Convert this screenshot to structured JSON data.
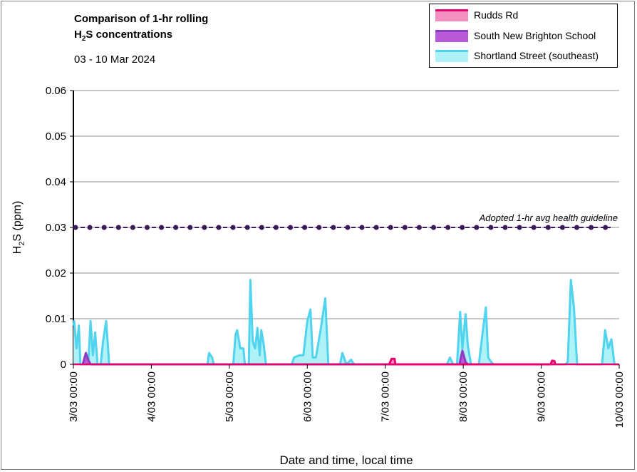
{
  "chart_data": {
    "type": "area",
    "title_line1": "Comparison of 1-hr rolling",
    "title_line2_pre": "H",
    "title_line2_sub": "2",
    "title_line2_post": "S concentrations",
    "subtitle": "03 - 10 Mar 2024",
    "xlabel": "Date and time, local time",
    "ylabel_pre": "H",
    "ylabel_sub": "2",
    "ylabel_post": "S (ppm)",
    "ylim": [
      0,
      0.06
    ],
    "yticks": [
      0,
      0.01,
      0.02,
      0.03,
      0.04,
      0.05,
      0.06
    ],
    "ytick_labels": [
      "0",
      "0.01",
      "0.02",
      "0.03",
      "0.04",
      "0.05",
      "0.06"
    ],
    "xlim_days": [
      0,
      7
    ],
    "xticks": [
      "3/03 00:00",
      "4/03 00:00",
      "5/03 00:00",
      "6/03 00:00",
      "7/03 00:00",
      "8/03 00:00",
      "9/03 00:00",
      "10/03 00:00"
    ],
    "grid": true,
    "legend_position": "top-right",
    "guideline": {
      "value": 0.03,
      "label": "Adopted 1-hr avg health guideline",
      "color": "#3b1a5a"
    },
    "series": [
      {
        "name": "Shortland Street (southeast)",
        "line_color": "#4fd3ee",
        "fill_color": "#aef2f8",
        "points": [
          [
            0.0,
            0.0085
          ],
          [
            0.01,
            0.0095
          ],
          [
            0.04,
            0.0035
          ],
          [
            0.07,
            0.0085
          ],
          [
            0.09,
            0.0
          ],
          [
            0.16,
            0.0
          ],
          [
            0.19,
            0.0
          ],
          [
            0.22,
            0.0095
          ],
          [
            0.25,
            0.002
          ],
          [
            0.28,
            0.007
          ],
          [
            0.31,
            0.0
          ],
          [
            0.35,
            0.0
          ],
          [
            0.38,
            0.005
          ],
          [
            0.42,
            0.0095
          ],
          [
            0.46,
            0.0
          ],
          [
            1.68,
            0.0
          ],
          [
            1.72,
            0.0
          ],
          [
            1.74,
            0.0025
          ],
          [
            1.78,
            0.0015
          ],
          [
            1.8,
            0.0
          ],
          [
            2.05,
            0.0
          ],
          [
            2.08,
            0.0065
          ],
          [
            2.1,
            0.0075
          ],
          [
            2.14,
            0.0035
          ],
          [
            2.18,
            0.0035
          ],
          [
            2.2,
            0.0
          ],
          [
            2.25,
            0.0
          ],
          [
            2.27,
            0.0185
          ],
          [
            2.3,
            0.005
          ],
          [
            2.33,
            0.0035
          ],
          [
            2.36,
            0.008
          ],
          [
            2.39,
            0.002
          ],
          [
            2.41,
            0.0075
          ],
          [
            2.44,
            0.0045
          ],
          [
            2.47,
            0.0
          ],
          [
            2.8,
            0.0
          ],
          [
            2.83,
            0.0015
          ],
          [
            2.9,
            0.002
          ],
          [
            2.95,
            0.002
          ],
          [
            3.0,
            0.0095
          ],
          [
            3.04,
            0.012
          ],
          [
            3.07,
            0.0015
          ],
          [
            3.11,
            0.0015
          ],
          [
            3.17,
            0.0075
          ],
          [
            3.23,
            0.0145
          ],
          [
            3.27,
            0.0
          ],
          [
            3.42,
            0.0
          ],
          [
            3.45,
            0.0025
          ],
          [
            3.5,
            0.0
          ],
          [
            3.56,
            0.001
          ],
          [
            3.6,
            0.0
          ],
          [
            4.05,
            0.0
          ],
          [
            4.1,
            0.001
          ],
          [
            4.13,
            0.0
          ],
          [
            4.79,
            0.0
          ],
          [
            4.83,
            0.0015
          ],
          [
            4.87,
            0.0
          ],
          [
            4.92,
            0.0
          ],
          [
            4.96,
            0.0115
          ],
          [
            4.99,
            0.0035
          ],
          [
            5.03,
            0.011
          ],
          [
            5.06,
            0.004
          ],
          [
            5.1,
            0.0
          ],
          [
            5.2,
            0.0
          ],
          [
            5.26,
            0.0085
          ],
          [
            5.29,
            0.0125
          ],
          [
            5.32,
            0.0015
          ],
          [
            5.36,
            0.0005
          ],
          [
            5.39,
            0.0
          ],
          [
            6.31,
            0.0
          ],
          [
            6.34,
            0.0005
          ],
          [
            6.38,
            0.0185
          ],
          [
            6.42,
            0.0125
          ],
          [
            6.46,
            0.0
          ],
          [
            6.78,
            0.0
          ],
          [
            6.82,
            0.0075
          ],
          [
            6.86,
            0.0035
          ],
          [
            6.9,
            0.0055
          ],
          [
            6.94,
            0.0
          ],
          [
            7.0,
            0.0
          ]
        ]
      },
      {
        "name": "South New Brighton School",
        "line_color": "#8c3bc2",
        "fill_color": "#b85ad7",
        "points": [
          [
            0.12,
            0.0
          ],
          [
            0.16,
            0.0025
          ],
          [
            0.19,
            0.001
          ],
          [
            0.22,
            0.0
          ],
          [
            4.95,
            0.0
          ],
          [
            4.99,
            0.003
          ],
          [
            5.03,
            0.0005
          ],
          [
            5.06,
            0.0
          ]
        ]
      },
      {
        "name": "Rudds Rd",
        "line_color": "#e8006f",
        "fill_color": "#f48fc2",
        "points": [
          [
            4.05,
            0.0
          ],
          [
            4.08,
            0.0012
          ],
          [
            4.12,
            0.0012
          ],
          [
            4.13,
            0.0
          ],
          [
            6.12,
            0.0
          ],
          [
            6.14,
            0.0008
          ],
          [
            6.17,
            0.0007
          ],
          [
            6.18,
            0.0
          ]
        ]
      }
    ],
    "legend_order": [
      "Rudds Rd",
      "South New Brighton School",
      "Shortland Street (southeast)"
    ]
  }
}
